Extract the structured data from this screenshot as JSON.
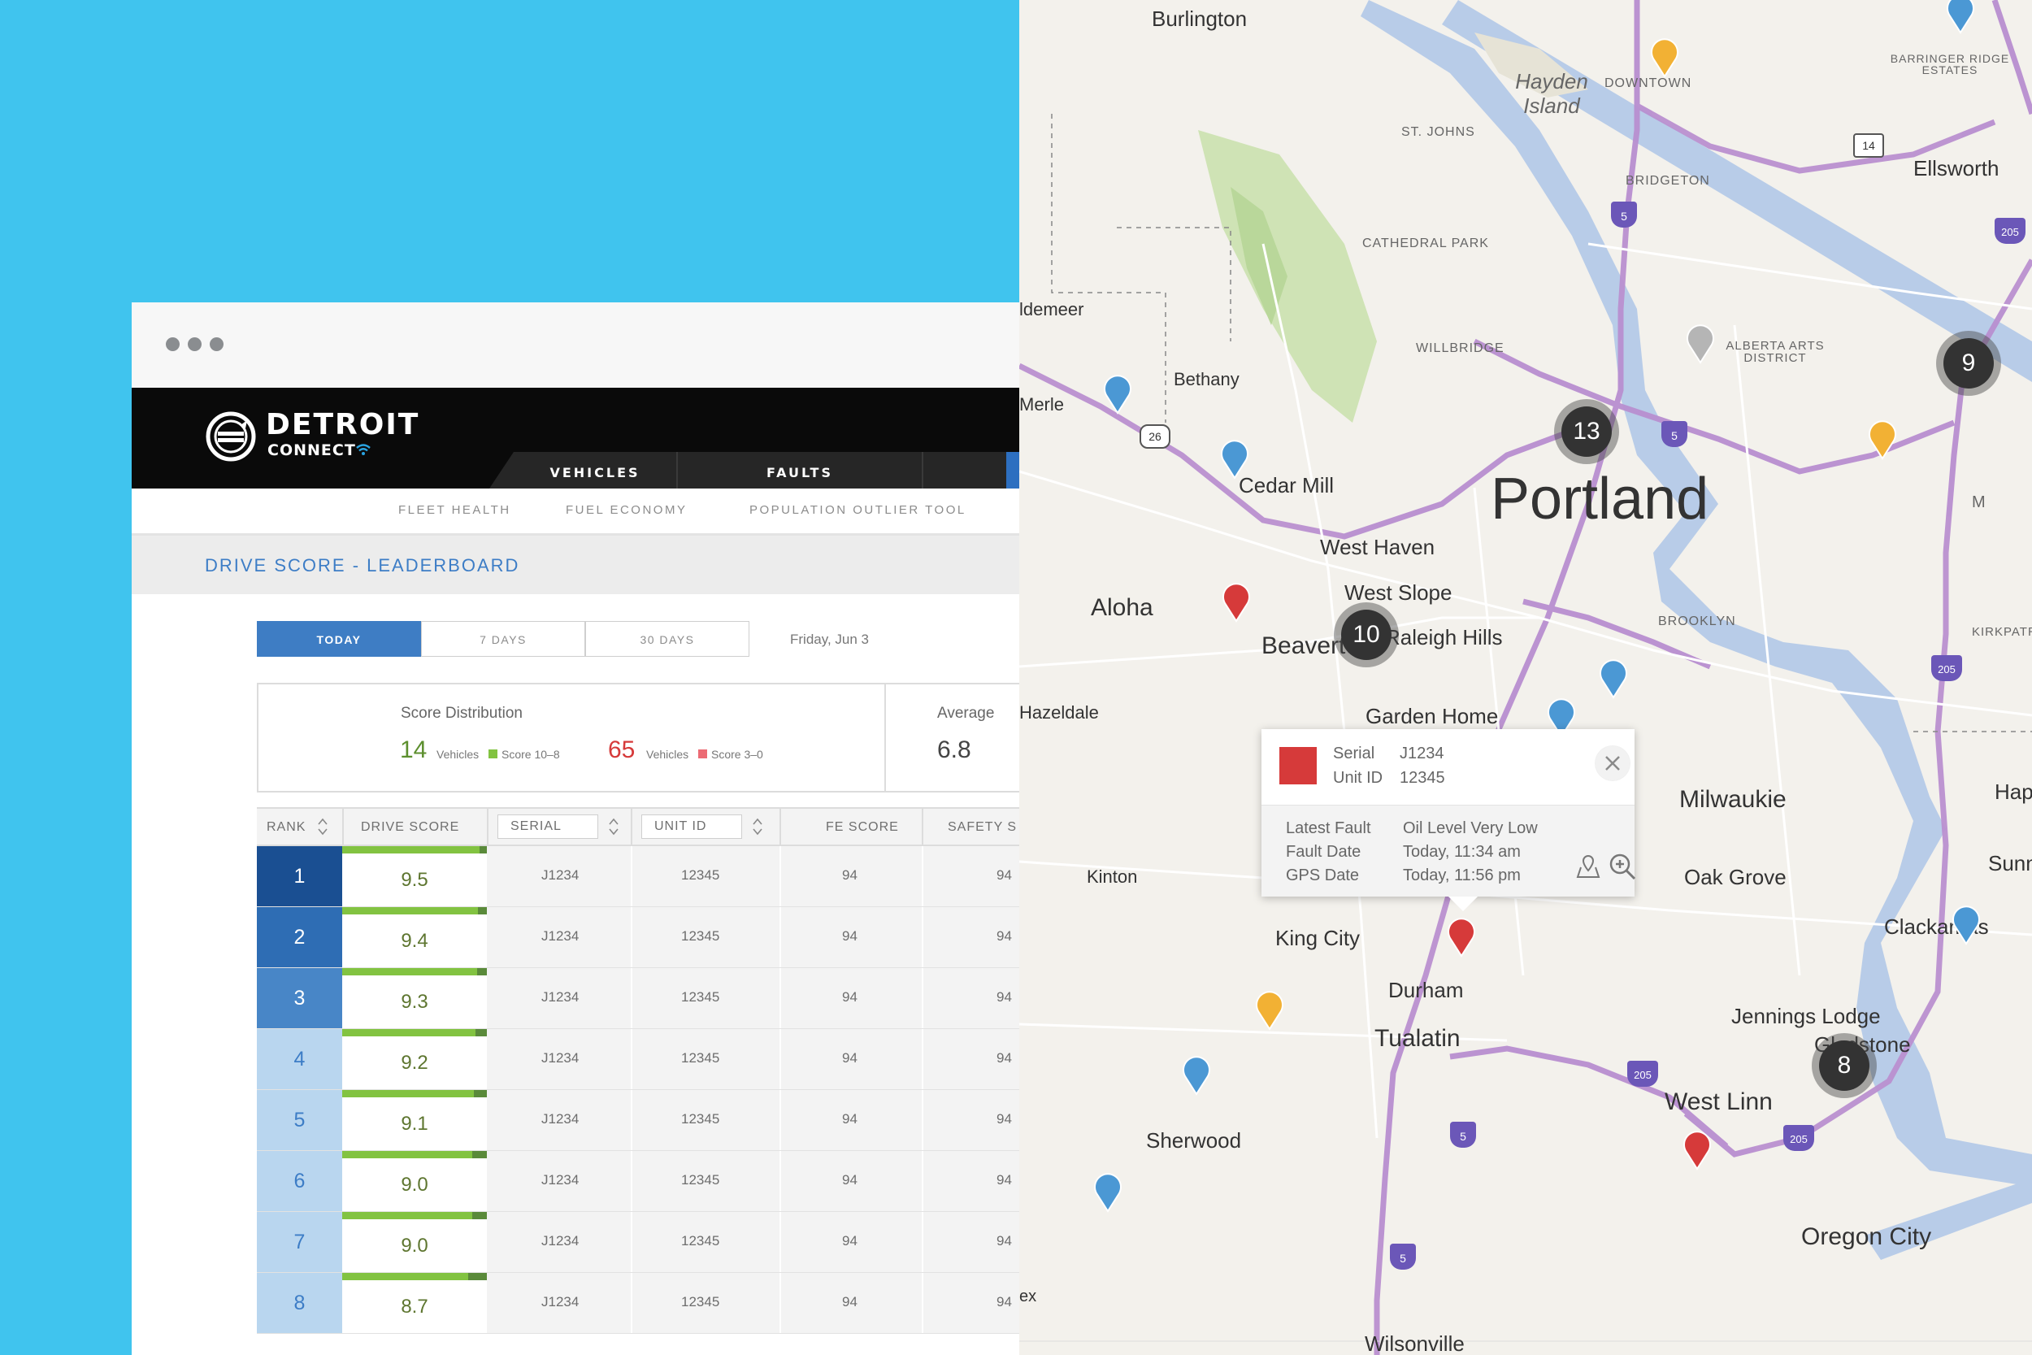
{
  "window": {
    "nav_tabs": [
      "VEHICLES",
      "FAULTS"
    ],
    "logo": {
      "word": "DETROIT",
      "sub": "CONNECT"
    },
    "sub_nav": [
      "FLEET HEALTH",
      "FUEL ECONOMY",
      "POPULATION OUTLIER TOOL"
    ],
    "page_title": "DRIVE SCORE - LEADERBOARD"
  },
  "ranges": {
    "tabs": [
      "TODAY",
      "7 DAYS",
      "30 DAYS"
    ],
    "active": "TODAY",
    "date": "Friday, Jun 3"
  },
  "score_distribution": {
    "label": "Score Distribution",
    "good": {
      "count": "14",
      "unit": "Vehicles",
      "legend": "Score 10–8",
      "color": "#82c341"
    },
    "bad": {
      "count": "65",
      "unit": "Vehicles",
      "legend": "Score 3–0",
      "color": "#ec6b74"
    },
    "average_label": "Average",
    "average_value": "6.8"
  },
  "table": {
    "headers": {
      "rank": "RANK",
      "drive_score": "DRIVE SCORE",
      "serial": "SERIAL",
      "unit_id": "UNIT ID",
      "fe_score": "FE SCORE",
      "safety_score": "SAFETY S"
    },
    "rows": [
      {
        "rank": "1",
        "drive_score": "9.5",
        "serial": "J1234",
        "unit_id": "12345",
        "fe_score": "94",
        "safety_score": "94",
        "rank_color": "#1a4f92"
      },
      {
        "rank": "2",
        "drive_score": "9.4",
        "serial": "J1234",
        "unit_id": "12345",
        "fe_score": "94",
        "safety_score": "94",
        "rank_color": "#2e6db4"
      },
      {
        "rank": "3",
        "drive_score": "9.3",
        "serial": "J1234",
        "unit_id": "12345",
        "fe_score": "94",
        "safety_score": "94",
        "rank_color": "#4886c7"
      },
      {
        "rank": "4",
        "drive_score": "9.2",
        "serial": "J1234",
        "unit_id": "12345",
        "fe_score": "94",
        "safety_score": "94",
        "rank_color": "#b9d6ef"
      },
      {
        "rank": "5",
        "drive_score": "9.1",
        "serial": "J1234",
        "unit_id": "12345",
        "fe_score": "94",
        "safety_score": "94",
        "rank_color": "#b9d6ef"
      },
      {
        "rank": "6",
        "drive_score": "9.0",
        "serial": "J1234",
        "unit_id": "12345",
        "fe_score": "94",
        "safety_score": "94",
        "rank_color": "#b9d6ef"
      },
      {
        "rank": "7",
        "drive_score": "9.0",
        "serial": "J1234",
        "unit_id": "12345",
        "fe_score": "94",
        "safety_score": "94",
        "rank_color": "#b9d6ef"
      },
      {
        "rank": "8",
        "drive_score": "8.7",
        "serial": "J1234",
        "unit_id": "12345",
        "fe_score": "94",
        "safety_score": "94",
        "rank_color": "#b9d6ef"
      }
    ]
  },
  "map": {
    "places": [
      "Burlington",
      "Hayden Island",
      "DOWNTOWN",
      "BARRINGER RIDGE ESTATES",
      "ST. JOHNS",
      "BRIDGETON",
      "Ellsworth",
      "CATHEDRAL PARK",
      "ldemeer",
      "WILLBRIDGE",
      "ALBERTA ARTS DISTRICT",
      "Bethany",
      "Merle",
      "Cedar Mill",
      "Portland",
      "M",
      "West Haven",
      "Aloha",
      "West Slope",
      "Beaverton",
      "Raleigh Hills",
      "BROOKLYN",
      "KIRKPATR",
      "Garden Home",
      "Hazeldale",
      "Milwaukie",
      "Happ",
      "Kinton",
      "Sunny",
      "Oak Grove",
      "King City",
      "Clackamas",
      "Durham",
      "Jennings Lodge",
      "Tualatin",
      "Gladstone",
      "West Linn",
      "Sherwood",
      "Oregon City",
      "Wilsonville",
      "ex"
    ],
    "shields": [
      "26",
      "5",
      "205",
      "14"
    ],
    "clusters": [
      "13",
      "9",
      "10",
      "8"
    ]
  },
  "popup": {
    "serial_label": "Serial",
    "serial": "J1234",
    "unit_label": "Unit ID",
    "unit": "12345",
    "fault_label": "Latest Fault",
    "fault": "Oil Level Very Low",
    "fault_date_label": "Fault Date",
    "fault_date": "Today, 11:34 am",
    "gps_label": "GPS Date",
    "gps_date": "Today, 11:56 pm",
    "swatch_color": "#d63a3a"
  }
}
